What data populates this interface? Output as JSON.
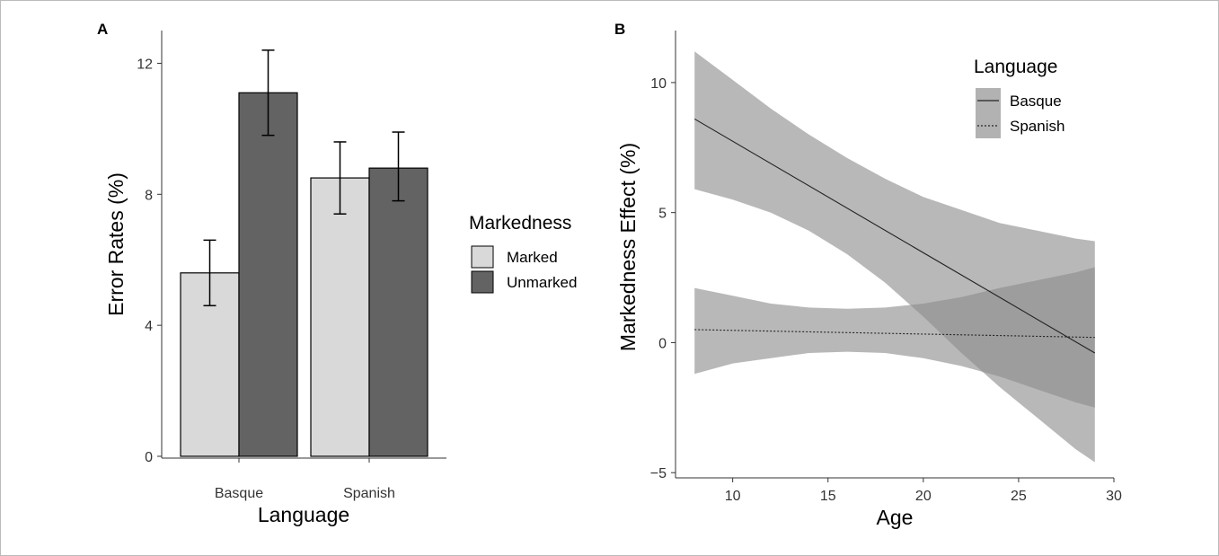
{
  "chart_data": [
    {
      "type": "bar",
      "panel_label": "A",
      "categories": [
        "Basque",
        "Spanish"
      ],
      "series": [
        {
          "name": "Marked",
          "values": [
            5.6,
            8.5
          ],
          "error_low": [
            4.6,
            7.4
          ],
          "error_high": [
            6.6,
            9.6
          ],
          "color": "#d9d9d9"
        },
        {
          "name": "Unmarked",
          "values": [
            11.1,
            8.8
          ],
          "error_low": [
            9.8,
            7.8
          ],
          "error_high": [
            12.4,
            9.9
          ],
          "color": "#636363"
        }
      ],
      "xlabel": "Language",
      "ylabel": "Error Rates (%)",
      "yticks": [
        0,
        4,
        8,
        12
      ],
      "ylim": [
        0,
        13
      ],
      "legend_title": "Markedness",
      "legend_position": "right",
      "grid": false
    },
    {
      "type": "line",
      "panel_label": "B",
      "x": [
        8,
        29
      ],
      "series": [
        {
          "name": "Basque",
          "values": [
            8.6,
            -0.4
          ],
          "line_style": "solid",
          "ribbon": {
            "x": [
              8,
              10,
              12,
              14,
              16,
              18,
              20,
              22,
              24,
              26,
              28,
              29
            ],
            "lower": [
              5.9,
              5.5,
              5.0,
              4.3,
              3.4,
              2.3,
              1.0,
              -0.4,
              -1.7,
              -2.9,
              -4.1,
              -4.6
            ],
            "upper": [
              11.2,
              10.1,
              9.0,
              8.0,
              7.1,
              6.3,
              5.6,
              5.1,
              4.6,
              4.3,
              4.0,
              3.9
            ]
          }
        },
        {
          "name": "Spanish",
          "values": [
            0.5,
            0.2
          ],
          "line_style": "dotted",
          "ribbon": {
            "x": [
              8,
              10,
              12,
              14,
              16,
              18,
              20,
              22,
              24,
              26,
              28,
              29
            ],
            "lower": [
              -1.2,
              -0.8,
              -0.6,
              -0.4,
              -0.35,
              -0.4,
              -0.6,
              -0.9,
              -1.3,
              -1.8,
              -2.3,
              -2.5
            ],
            "upper": [
              2.1,
              1.8,
              1.5,
              1.35,
              1.3,
              1.35,
              1.5,
              1.75,
              2.1,
              2.4,
              2.7,
              2.9
            ]
          }
        }
      ],
      "xlabel": "Age",
      "ylabel": "Markedness Effect (%)",
      "xticks": [
        10,
        15,
        20,
        25,
        30
      ],
      "yticks": [
        -5,
        0,
        5,
        10
      ],
      "xlim": [
        7,
        30
      ],
      "ylim": [
        -5.2,
        12
      ],
      "legend_title": "Language",
      "legend_position": "top-right",
      "ribbon_color": "#8c8c8c",
      "grid": false
    }
  ]
}
